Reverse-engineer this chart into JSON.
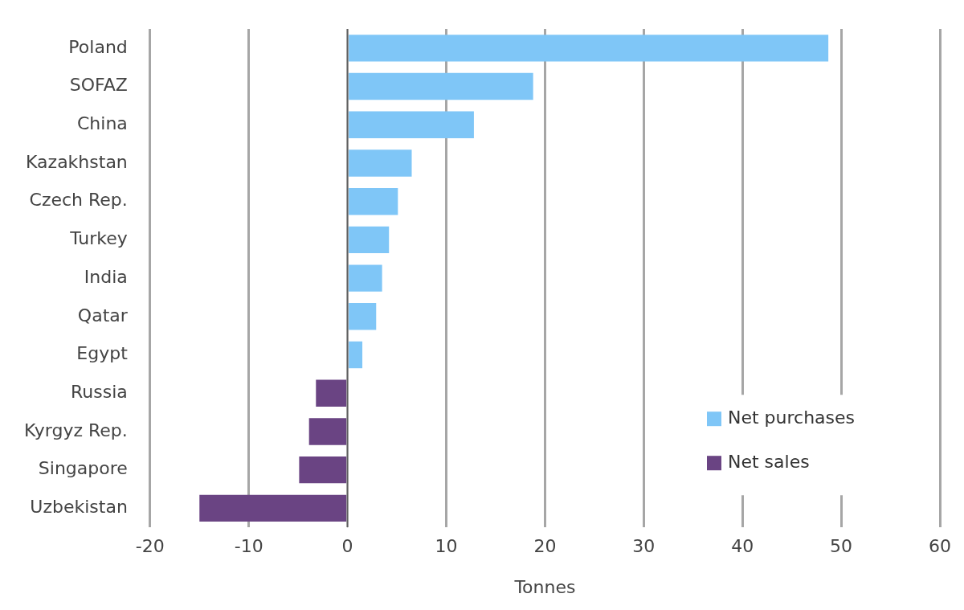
{
  "chart_data": {
    "type": "bar",
    "orientation": "horizontal",
    "xlabel": "Tonnes",
    "categories": [
      "Poland",
      "SOFAZ",
      "China",
      "Kazakhstan",
      "Czech Rep.",
      "Turkey",
      "India",
      "Qatar",
      "Egypt",
      "Russia",
      "Kyrgyz Rep.",
      "Singapore",
      "Uzbekistan"
    ],
    "series": [
      {
        "name": "Net purchases",
        "color": "#7fc6f7",
        "values": [
          48.7,
          18.8,
          12.8,
          6.5,
          5.1,
          4.2,
          3.5,
          2.9,
          1.5,
          null,
          null,
          null,
          null
        ]
      },
      {
        "name": "Net sales",
        "color": "#6a4483",
        "values": [
          null,
          null,
          null,
          null,
          null,
          null,
          null,
          null,
          null,
          -3.2,
          -3.9,
          -4.9,
          -15.0
        ]
      }
    ],
    "xlim": [
      -20,
      60
    ],
    "xticks": [
      -20,
      -10,
      0,
      10,
      20,
      30,
      40,
      50,
      60
    ],
    "grid": "x",
    "legend": "bottom right"
  }
}
